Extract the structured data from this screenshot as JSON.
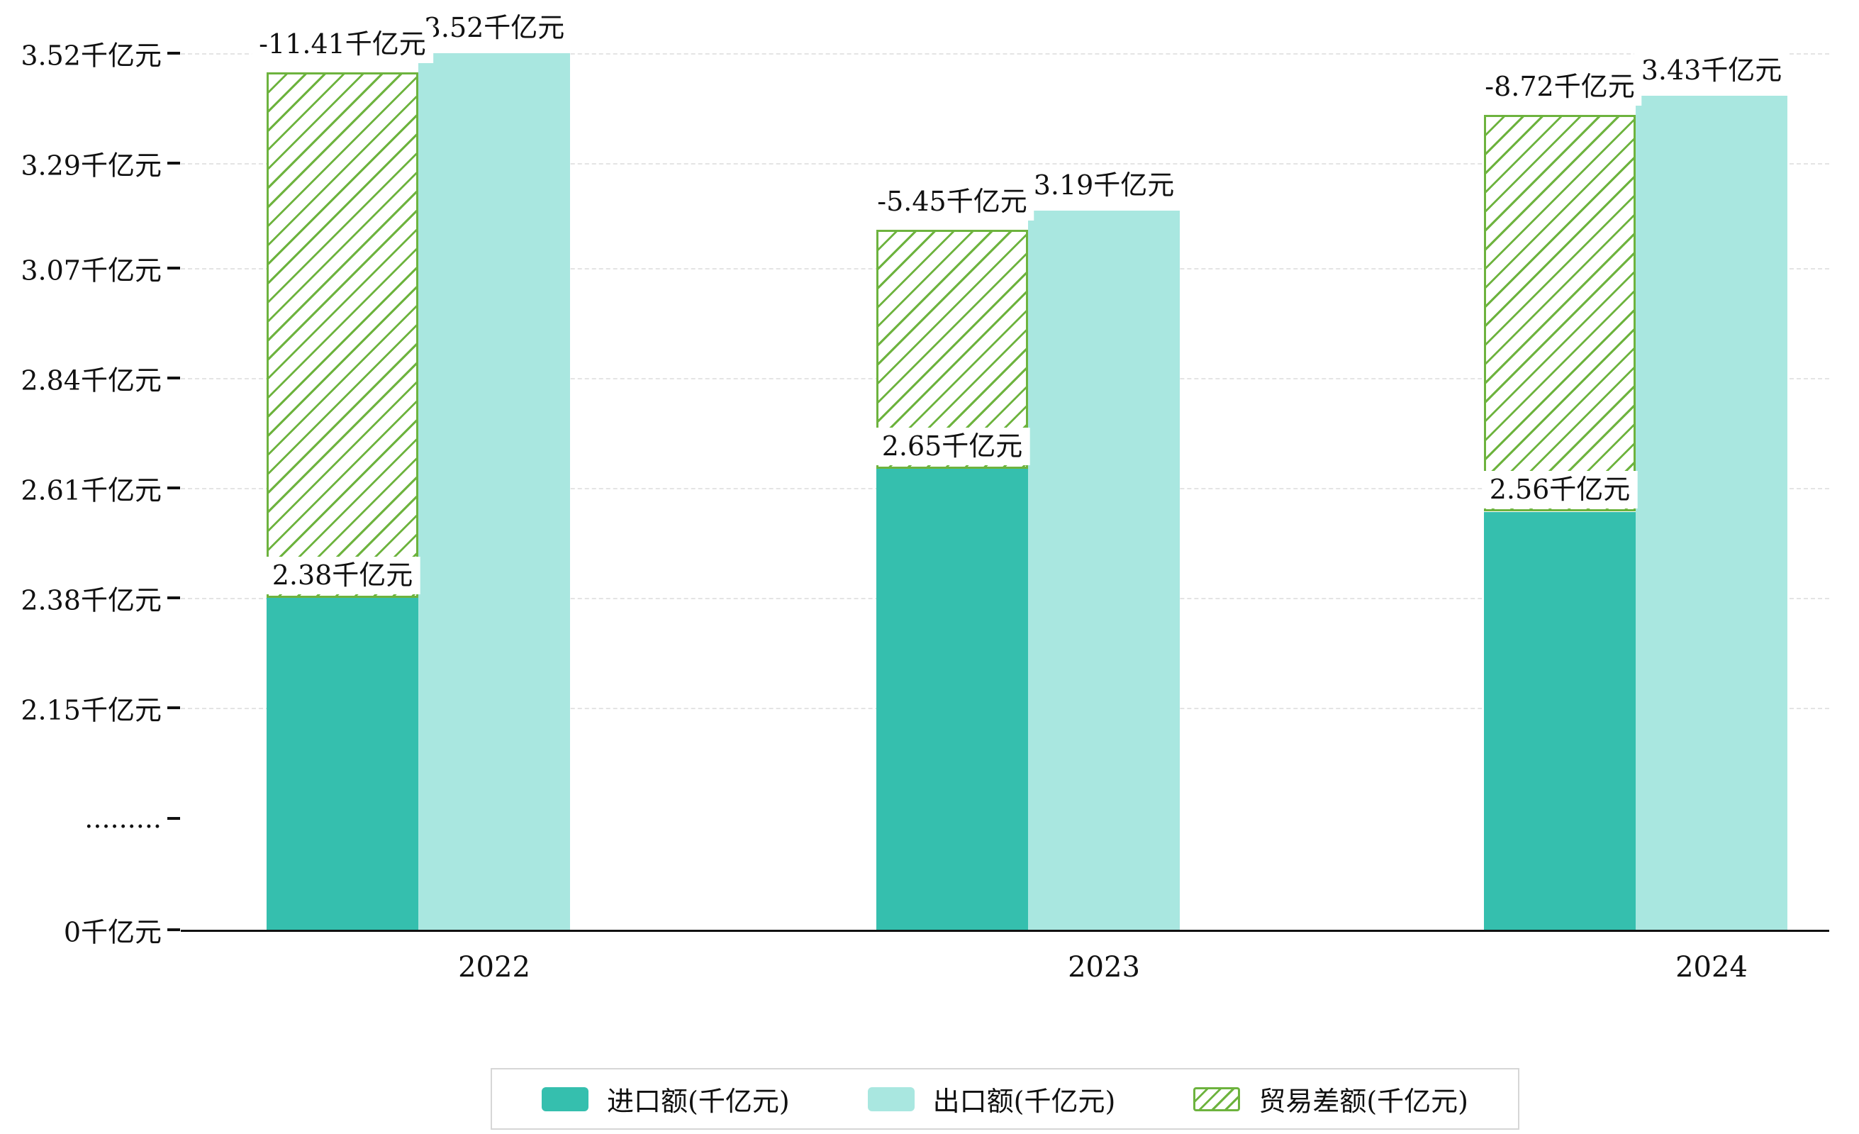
{
  "chart_data": {
    "type": "bar",
    "title": "",
    "xlabel": "",
    "ylabel": "",
    "categories": [
      "2022",
      "2023",
      "2024"
    ],
    "series": [
      {
        "name": "进口额(千亿元)",
        "values": [
          2.38,
          2.65,
          2.56
        ],
        "labels": [
          "2.38千亿元",
          "2.65千亿元",
          "2.56千亿元"
        ],
        "color": "#35bfae",
        "style": "solid"
      },
      {
        "name": "出口额(千亿元)",
        "values": [
          3.52,
          3.19,
          3.43
        ],
        "labels": [
          "3.52千亿元",
          "3.19千亿元",
          "3.43千亿元"
        ],
        "color": "#a9e7e0",
        "style": "solid"
      },
      {
        "name": "贸易差额(千亿元)",
        "values": [
          -11.41,
          -5.45,
          -8.72
        ],
        "labels": [
          "-11.41千亿元",
          "-5.45千亿元",
          "-8.72千亿元"
        ],
        "color": "#6db33e",
        "style": "hatched",
        "note": "hatched bar drawn from top of import bar to top of export bar"
      }
    ],
    "y_axis": {
      "broken_axis": true,
      "ticks": [
        {
          "label": "3.52千亿元",
          "value": 3.52
        },
        {
          "label": "3.29千亿元",
          "value": 3.29
        },
        {
          "label": "3.07千亿元",
          "value": 3.07
        },
        {
          "label": "2.84千亿元",
          "value": 2.84
        },
        {
          "label": "2.61千亿元",
          "value": 2.61
        },
        {
          "label": "2.38千亿元",
          "value": 2.38
        },
        {
          "label": "2.15千亿元",
          "value": 2.15
        },
        {
          "label": ".........",
          "value": null
        },
        {
          "label": "0千亿元",
          "value": 0
        }
      ]
    },
    "legend": [
      {
        "label": "进口额(千亿元)",
        "swatch": "solid",
        "color": "#35bfae"
      },
      {
        "label": "出口额(千亿元)",
        "swatch": "solid",
        "color": "#a9e7e0"
      },
      {
        "label": "贸易差额(千亿元)",
        "swatch": "hatched",
        "color": "#6db33e"
      }
    ],
    "grid": true,
    "legend_position": "bottom-center"
  },
  "colors": {
    "background": "#ffffff",
    "axis": "#111111",
    "gridline": "#e4e4e4",
    "legend_border": "#d6d6d6",
    "label_background": "#ffffff"
  }
}
